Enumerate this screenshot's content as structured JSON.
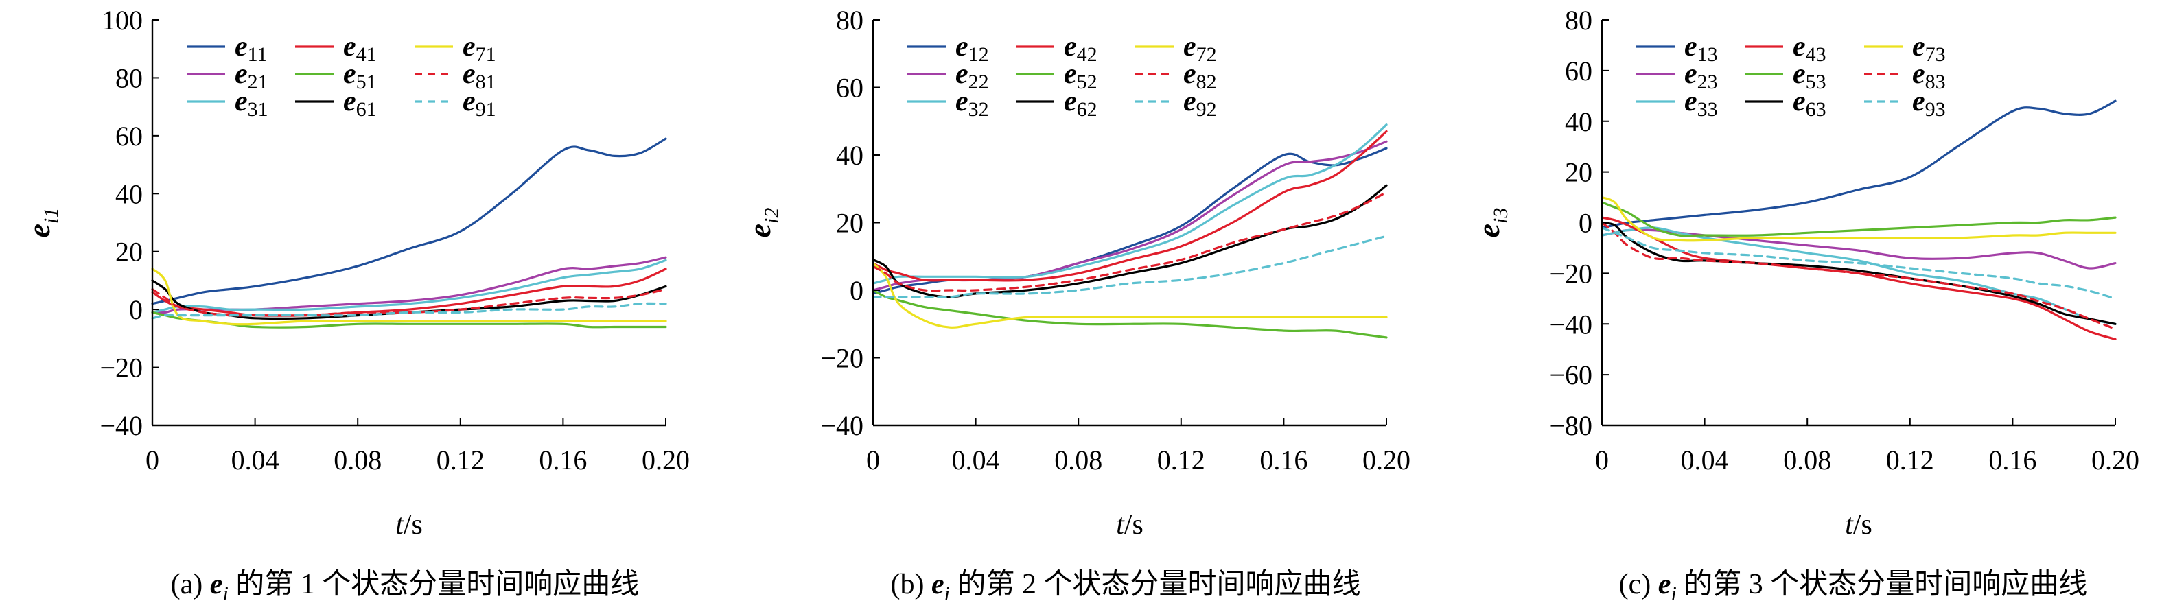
{
  "figure": {
    "captions": [
      "(a) e_i 的第 1 个状态分量时间响应曲线",
      "(b) e_i 的第 2 个状态分量时间响应曲线",
      "(c) e_i 的第 3 个状态分量时间响应曲线"
    ]
  },
  "colors": {
    "s1": "#1f4e9a",
    "s2": "#a33fa6",
    "s3": "#5bc0cf",
    "s4": "#e01e2c",
    "s5": "#5cb82e",
    "s6": "#000000",
    "s7": "#ece11f",
    "s8": "#e01e2c",
    "s9": "#5bc0cf"
  },
  "chart_data": [
    {
      "type": "line",
      "caption": "(a) e_i 的第 1 个状态分量时间响应曲线",
      "xlabel": "t/s",
      "ylabel": "e_i1",
      "xlim": [
        0,
        0.2
      ],
      "ylim": [
        -40,
        100
      ],
      "xticks": [
        "0",
        "0.04",
        "0.08",
        "0.12",
        "0.16",
        "0.20"
      ],
      "yticks": [
        "−40",
        "−20",
        "0",
        "20",
        "40",
        "60",
        "80",
        "100"
      ],
      "legend_position": "top-left",
      "x": [
        0,
        0.005,
        0.01,
        0.02,
        0.03,
        0.04,
        0.06,
        0.08,
        0.1,
        0.12,
        0.14,
        0.16,
        0.17,
        0.18,
        0.19,
        0.2
      ],
      "series": [
        {
          "name": "e11",
          "color": "#1f4e9a",
          "dash": "solid",
          "values": [
            2,
            3,
            4,
            6,
            7,
            8,
            11,
            15,
            21,
            27,
            40,
            55,
            55,
            53,
            54,
            59
          ]
        },
        {
          "name": "e21",
          "color": "#a33fa6",
          "dash": "solid",
          "values": [
            -1,
            -1,
            0,
            0,
            0,
            0,
            1,
            2,
            3,
            5,
            9,
            14,
            14,
            15,
            16,
            18
          ]
        },
        {
          "name": "e31",
          "color": "#5bc0cf",
          "dash": "solid",
          "values": [
            -1,
            0,
            1,
            1,
            0,
            0,
            0,
            1,
            2,
            4,
            7,
            11,
            12,
            13,
            14,
            17
          ]
        },
        {
          "name": "e41",
          "color": "#e01e2c",
          "dash": "solid",
          "values": [
            6,
            3,
            1,
            0,
            -1,
            -2,
            -2,
            -1,
            0,
            2,
            5,
            8,
            8,
            8,
            10,
            14
          ]
        },
        {
          "name": "e51",
          "color": "#5cb82e",
          "dash": "solid",
          "values": [
            -1,
            -2,
            -3,
            -4,
            -5,
            -6,
            -6,
            -5,
            -5,
            -5,
            -5,
            -5,
            -6,
            -6,
            -6,
            -6
          ]
        },
        {
          "name": "e61",
          "color": "#000000",
          "dash": "solid",
          "values": [
            10,
            7,
            2,
            -1,
            -2,
            -3,
            -3,
            -2,
            -1,
            0,
            1,
            3,
            3,
            3,
            5,
            8
          ]
        },
        {
          "name": "e71",
          "color": "#ece11f",
          "dash": "solid",
          "values": [
            14,
            10,
            -2,
            -4,
            -5,
            -5,
            -4,
            -4,
            -4,
            -4,
            -4,
            -4,
            -4,
            -4,
            -4,
            -4
          ]
        },
        {
          "name": "e81",
          "color": "#e01e2c",
          "dash": "dashed",
          "values": [
            7,
            4,
            1,
            -1,
            -2,
            -2,
            -2,
            -1,
            -1,
            0,
            2,
            4,
            4,
            4,
            5,
            7
          ]
        },
        {
          "name": "e91",
          "color": "#5bc0cf",
          "dash": "dashed",
          "values": [
            -3,
            -2,
            -2,
            -2,
            -2,
            -2,
            -2,
            -2,
            -1,
            -1,
            0,
            0,
            1,
            1,
            2,
            2
          ]
        }
      ]
    },
    {
      "type": "line",
      "caption": "(b) e_i 的第 2 个状态分量时间响应曲线",
      "xlabel": "t/s",
      "ylabel": "e_i2",
      "xlim": [
        0,
        0.2
      ],
      "ylim": [
        -40,
        80
      ],
      "xticks": [
        "0",
        "0.04",
        "0.08",
        "0.12",
        "0.16",
        "0.20"
      ],
      "yticks": [
        "−40",
        "−20",
        "0",
        "20",
        "40",
        "60",
        "80"
      ],
      "legend_position": "top-left",
      "x": [
        0,
        0.005,
        0.01,
        0.02,
        0.03,
        0.04,
        0.06,
        0.08,
        0.1,
        0.12,
        0.14,
        0.16,
        0.17,
        0.18,
        0.19,
        0.2
      ],
      "series": [
        {
          "name": "e12",
          "color": "#1f4e9a",
          "dash": "solid",
          "values": [
            -1,
            0,
            1,
            2,
            3,
            3,
            4,
            8,
            13,
            19,
            30,
            40,
            38,
            37,
            39,
            42
          ]
        },
        {
          "name": "e22",
          "color": "#a33fa6",
          "dash": "solid",
          "values": [
            0,
            1,
            2,
            3,
            3,
            3,
            4,
            8,
            12,
            18,
            28,
            37,
            38,
            39,
            41,
            44
          ]
        },
        {
          "name": "e32",
          "color": "#5bc0cf",
          "dash": "solid",
          "values": [
            2,
            3,
            4,
            4,
            4,
            4,
            4,
            7,
            11,
            16,
            25,
            33,
            34,
            37,
            42,
            49
          ]
        },
        {
          "name": "e42",
          "color": "#e01e2c",
          "dash": "solid",
          "values": [
            8,
            6,
            5,
            3,
            3,
            3,
            3,
            5,
            9,
            13,
            20,
            29,
            31,
            34,
            40,
            47
          ]
        },
        {
          "name": "e52",
          "color": "#5cb82e",
          "dash": "solid",
          "values": [
            0,
            -2,
            -3,
            -5,
            -6,
            -7,
            -9,
            -10,
            -10,
            -10,
            -11,
            -12,
            -12,
            -12,
            -13,
            -14
          ]
        },
        {
          "name": "e62",
          "color": "#000000",
          "dash": "solid",
          "values": [
            9,
            7,
            2,
            -1,
            -2,
            -1,
            0,
            2,
            5,
            8,
            13,
            18,
            19,
            21,
            25,
            31
          ]
        },
        {
          "name": "e72",
          "color": "#ece11f",
          "dash": "solid",
          "values": [
            8,
            4,
            -4,
            -9,
            -11,
            -10,
            -8,
            -8,
            -8,
            -8,
            -8,
            -8,
            -8,
            -8,
            -8,
            -8
          ]
        },
        {
          "name": "e82",
          "color": "#e01e2c",
          "dash": "dashed",
          "values": [
            7,
            5,
            2,
            0,
            0,
            0,
            1,
            3,
            6,
            9,
            14,
            18,
            20,
            22,
            25,
            29
          ]
        },
        {
          "name": "e92",
          "color": "#5bc0cf",
          "dash": "dashed",
          "values": [
            -2,
            -2,
            -2,
            -2,
            -2,
            -1,
            -1,
            0,
            2,
            3,
            5,
            8,
            10,
            12,
            14,
            16
          ]
        }
      ]
    },
    {
      "type": "line",
      "caption": "(c) e_i 的第 3 个状态分量时间响应曲线",
      "xlabel": "t/s",
      "ylabel": "e_i3",
      "xlim": [
        0,
        0.2
      ],
      "ylim": [
        -80,
        80
      ],
      "xticks": [
        "0",
        "0.04",
        "0.08",
        "0.12",
        "0.16",
        "0.20"
      ],
      "yticks": [
        "−80",
        "−60",
        "−40",
        "−20",
        "0",
        "20",
        "40",
        "60",
        "80"
      ],
      "legend_position": "top-left",
      "x": [
        0,
        0.005,
        0.01,
        0.02,
        0.03,
        0.04,
        0.06,
        0.08,
        0.1,
        0.12,
        0.14,
        0.16,
        0.17,
        0.18,
        0.19,
        0.2
      ],
      "series": [
        {
          "name": "e13",
          "color": "#1f4e9a",
          "dash": "solid",
          "values": [
            -2,
            -1,
            0,
            1,
            2,
            3,
            5,
            8,
            13,
            18,
            31,
            44,
            45,
            43,
            43,
            48
          ]
        },
        {
          "name": "e23",
          "color": "#a33fa6",
          "dash": "solid",
          "values": [
            -5,
            -4,
            -3,
            -3,
            -4,
            -5,
            -7,
            -9,
            -11,
            -14,
            -14,
            -12,
            -12,
            -15,
            -18,
            -16
          ]
        },
        {
          "name": "e33",
          "color": "#5bc0cf",
          "dash": "solid",
          "values": [
            -5,
            -4,
            -3,
            -2,
            -4,
            -6,
            -9,
            -12,
            -15,
            -20,
            -23,
            -28,
            -30,
            -34,
            -38,
            -40
          ]
        },
        {
          "name": "e43",
          "color": "#e01e2c",
          "dash": "solid",
          "values": [
            2,
            1,
            -1,
            -6,
            -11,
            -14,
            -16,
            -18,
            -20,
            -24,
            -27,
            -30,
            -33,
            -38,
            -43,
            -46
          ]
        },
        {
          "name": "e53",
          "color": "#5cb82e",
          "dash": "solid",
          "values": [
            8,
            6,
            4,
            -2,
            -5,
            -5,
            -5,
            -4,
            -3,
            -2,
            -1,
            0,
            0,
            1,
            1,
            2
          ]
        },
        {
          "name": "e63",
          "color": "#000000",
          "dash": "solid",
          "values": [
            0,
            -1,
            -6,
            -12,
            -15,
            -15,
            -16,
            -17,
            -19,
            -22,
            -25,
            -29,
            -32,
            -36,
            -38,
            -40
          ]
        },
        {
          "name": "e73",
          "color": "#ece11f",
          "dash": "solid",
          "values": [
            10,
            8,
            1,
            -6,
            -7,
            -7,
            -6,
            -6,
            -6,
            -6,
            -6,
            -5,
            -5,
            -4,
            -4,
            -4
          ]
        },
        {
          "name": "e83",
          "color": "#e01e2c",
          "dash": "dashed",
          "values": [
            0,
            -4,
            -9,
            -14,
            -14,
            -15,
            -16,
            -18,
            -20,
            -22,
            -25,
            -28,
            -31,
            -34,
            -38,
            -42
          ]
        },
        {
          "name": "e93",
          "color": "#5bc0cf",
          "dash": "dashed",
          "values": [
            -2,
            -4,
            -6,
            -10,
            -11,
            -12,
            -13,
            -15,
            -16,
            -18,
            -20,
            -22,
            -24,
            -25,
            -27,
            -30
          ]
        }
      ]
    }
  ]
}
